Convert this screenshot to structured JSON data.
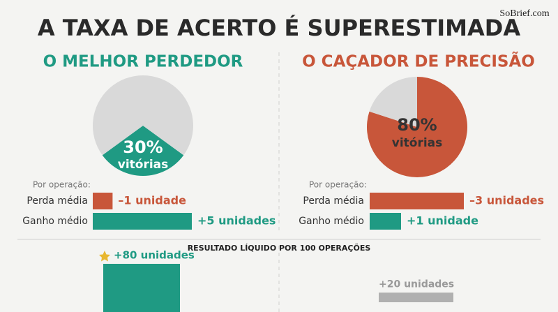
{
  "title": "A TAXA DE ACERTO É SUPERESTIMADA",
  "watermark": "SoBrief.com",
  "chart_data": [
    {
      "type": "pie",
      "title": "O MELHOR PERDEDOR",
      "categories": [
        "vitórias",
        null
      ],
      "values": [
        30,
        70
      ],
      "value_labels": [
        "30%",
        null
      ],
      "colors": [
        "#1f9a83",
        "#d9d9d9"
      ],
      "label_color": "#ffffff"
    },
    {
      "type": "pie",
      "title": "O CAÇADOR DE PRECISÃO",
      "categories": [
        "vitórias",
        null
      ],
      "values": [
        80,
        20
      ],
      "value_labels": [
        "80%",
        null
      ],
      "colors": [
        "#c8563a",
        "#d9d9d9"
      ],
      "label_color": "#333333"
    },
    {
      "type": "hbar",
      "subtitle": "Por operação:",
      "categories": [
        "Perda média",
        "Ganho médio"
      ],
      "values": [
        -1,
        5
      ],
      "value_labels": [
        "–1 unidade",
        "+5 unidades"
      ],
      "colors": [
        "#c8563a",
        "#1f9a83"
      ]
    },
    {
      "type": "hbar",
      "subtitle": "Por operação:",
      "categories": [
        "Perda média",
        "Ganho médio"
      ],
      "values": [
        -3,
        1
      ],
      "value_labels": [
        "–3 unidades",
        "+1 unidade"
      ],
      "colors": [
        "#c8563a",
        "#1f9a83"
      ]
    },
    {
      "type": "column",
      "title": "RESULTADO LÍQUIDO POR 100 OPERAÇÕES",
      "values": [
        80,
        20
      ],
      "value_labels": [
        "+80 unidades",
        "+20 unidades"
      ],
      "colors": [
        "#1f9a83",
        "#b0b0b0"
      ]
    }
  ]
}
